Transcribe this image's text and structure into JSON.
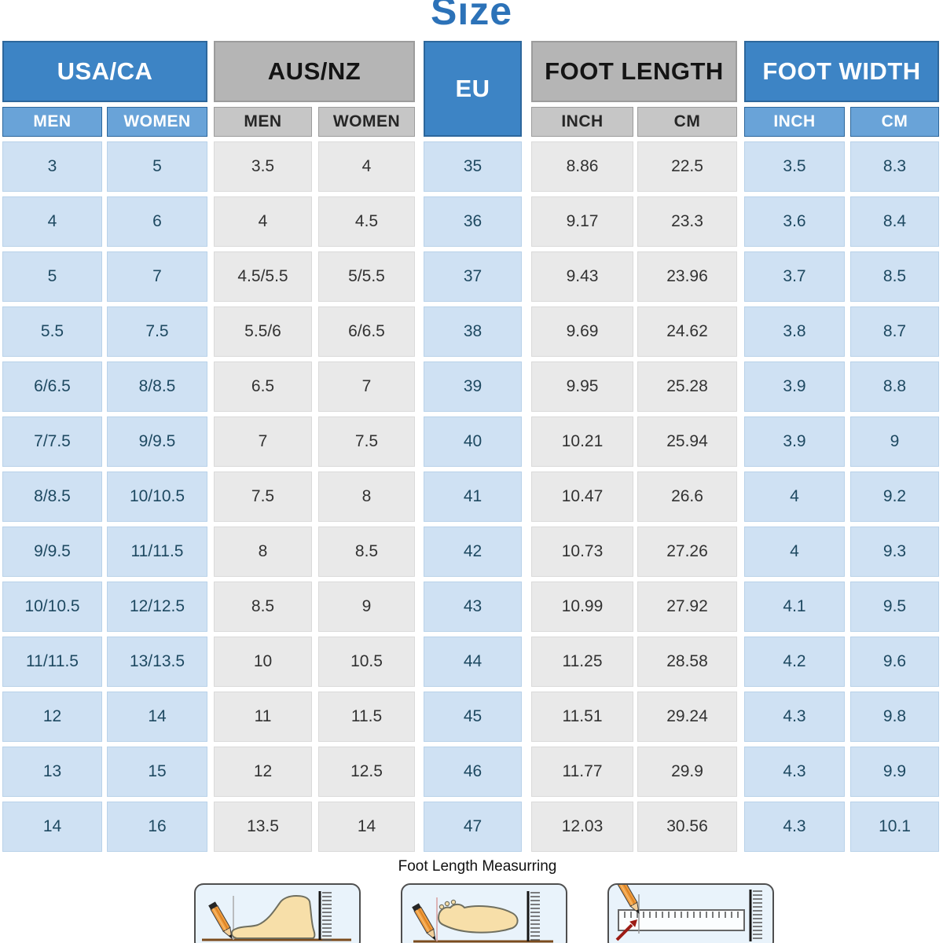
{
  "title": "Size",
  "chart_data": {
    "type": "table",
    "title": "Size",
    "column_groups": [
      {
        "label": "USA/CA",
        "columns": [
          "MEN",
          "WOMEN"
        ]
      },
      {
        "label": "AUS/NZ",
        "columns": [
          "MEN",
          "WOMEN"
        ]
      },
      {
        "label": "EU",
        "columns": []
      },
      {
        "label": "FOOT LENGTH",
        "columns": [
          "INCH",
          "CM"
        ]
      },
      {
        "label": "FOOT WIDTH",
        "columns": [
          "INCH",
          "CM"
        ]
      }
    ],
    "rows": [
      [
        "3",
        "5",
        "3.5",
        "4",
        "35",
        "8.86",
        "22.5",
        "3.5",
        "8.3"
      ],
      [
        "4",
        "6",
        "4",
        "4.5",
        "36",
        "9.17",
        "23.3",
        "3.6",
        "8.4"
      ],
      [
        "5",
        "7",
        "4.5/5.5",
        "5/5.5",
        "37",
        "9.43",
        "23.96",
        "3.7",
        "8.5"
      ],
      [
        "5.5",
        "7.5",
        "5.5/6",
        "6/6.5",
        "38",
        "9.69",
        "24.62",
        "3.8",
        "8.7"
      ],
      [
        "6/6.5",
        "8/8.5",
        "6.5",
        "7",
        "39",
        "9.95",
        "25.28",
        "3.9",
        "8.8"
      ],
      [
        "7/7.5",
        "9/9.5",
        "7",
        "7.5",
        "40",
        "10.21",
        "25.94",
        "3.9",
        "9"
      ],
      [
        "8/8.5",
        "10/10.5",
        "7.5",
        "8",
        "41",
        "10.47",
        "26.6",
        "4",
        "9.2"
      ],
      [
        "9/9.5",
        "11/11.5",
        "8",
        "8.5",
        "42",
        "10.73",
        "27.26",
        "4",
        "9.3"
      ],
      [
        "10/10.5",
        "12/12.5",
        "8.5",
        "9",
        "43",
        "10.99",
        "27.92",
        "4.1",
        "9.5"
      ],
      [
        "11/11.5",
        "13/13.5",
        "10",
        "10.5",
        "44",
        "11.25",
        "28.58",
        "4.2",
        "9.6"
      ],
      [
        "12",
        "14",
        "11",
        "11.5",
        "45",
        "11.51",
        "29.24",
        "4.3",
        "9.8"
      ],
      [
        "13",
        "15",
        "12",
        "12.5",
        "46",
        "11.77",
        "29.9",
        "4.3",
        "9.9"
      ],
      [
        "14",
        "16",
        "13.5",
        "14",
        "47",
        "12.03",
        "30.56",
        "4.3",
        "10.1"
      ]
    ]
  },
  "footer": {
    "caption": "Foot Length Measurring",
    "illustrations": [
      "foot-side-measuring-icon",
      "foot-sole-measuring-icon",
      "ruler-measuring-icon"
    ]
  },
  "colors": {
    "title": "#2c72b8",
    "header_blue": "#3d84c5",
    "header_blue_border": "#2d679c",
    "subheader_blue": "#69a3d8",
    "header_gray": "#b5b5b5",
    "header_gray_border": "#9c9c9c",
    "subheader_gray": "#c6c6c6",
    "cell_blue": "#cfe1f3",
    "cell_gray": "#e9e9e9",
    "cell_blue_text": "#1e4961",
    "cell_gray_text": "#323232",
    "illustration_bg": "#e9f3fb"
  }
}
